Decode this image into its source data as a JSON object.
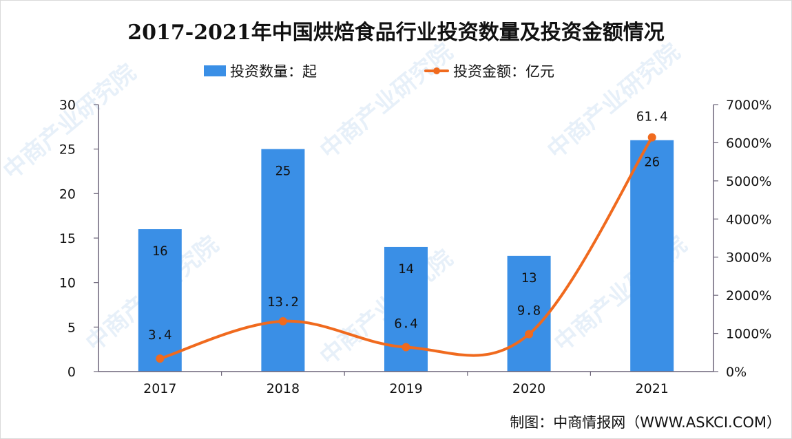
{
  "title": "2017-2021年中国烘焙食品行业投资数量及投资金额情况",
  "legend": {
    "bar_label": "投资数量：起",
    "line_label": "投资金额：亿元"
  },
  "colors": {
    "bar": "#3a8fe6",
    "line": "#f06a1e",
    "axis": "#6b6478",
    "text": "#111111"
  },
  "source": "制图：中商情报网（WWW.ASKCI.COM）",
  "watermark": "中商产业研究院",
  "chart_data": {
    "type": "bar",
    "title": "2017-2021年中国烘焙食品行业投资数量及投资金额情况",
    "categories": [
      "2017",
      "2018",
      "2019",
      "2020",
      "2021"
    ],
    "series": [
      {
        "name": "投资数量：起",
        "type": "bar",
        "axis": "left",
        "values": [
          16,
          25,
          14,
          13,
          26
        ],
        "labels": [
          "16",
          "25",
          "14",
          "13",
          "26"
        ]
      },
      {
        "name": "投资金额：亿元",
        "type": "line",
        "smooth": true,
        "axis": "right",
        "values": [
          3.4,
          13.2,
          6.4,
          9.8,
          61.4
        ],
        "labels": [
          "3.4",
          "13.2",
          "6.4",
          "9.8",
          "61.4"
        ]
      }
    ],
    "xlabel": "",
    "ylabel_left": "",
    "ylabel_right": "",
    "ylim_left": [
      0,
      30
    ],
    "yticks_left": [
      "0",
      "5",
      "10",
      "15",
      "20",
      "25",
      "30"
    ],
    "ylim_right": [
      0,
      7000
    ],
    "yticks_right": [
      "0%",
      "1000%",
      "2000%",
      "3000%",
      "4000%",
      "5000%",
      "6000%",
      "7000%"
    ],
    "grid": false,
    "legend_position": "top"
  }
}
